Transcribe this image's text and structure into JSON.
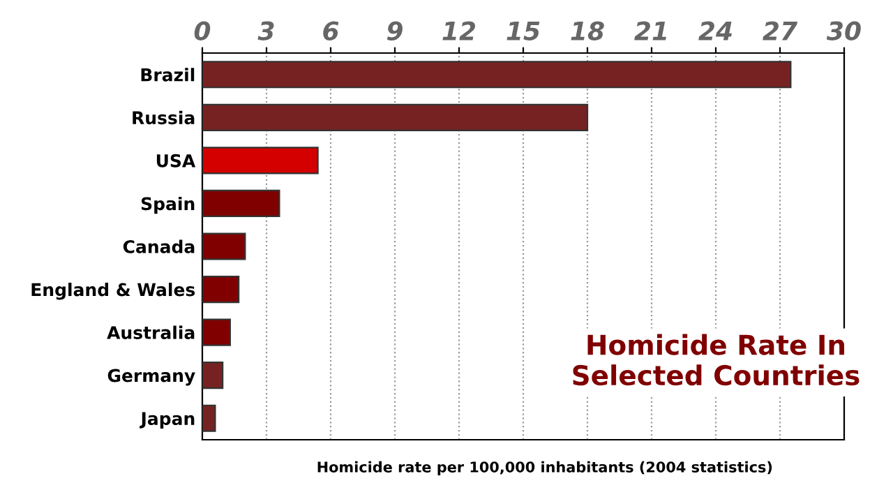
{
  "chart_data": {
    "type": "bar",
    "orientation": "horizontal",
    "title": "Homicide Rate In Selected Countries",
    "xlabel": "Homicide rate per 100,000 inhabitants (2004 statistics)",
    "categories": [
      "Brazil",
      "Russia",
      "USA",
      "Spain",
      "Canada",
      "England & Wales",
      "Australia",
      "Germany",
      "Japan"
    ],
    "values": [
      27.5,
      18,
      5.4,
      3.6,
      2.0,
      1.7,
      1.3,
      0.95,
      0.6
    ],
    "colors": [
      "#772222",
      "#772222",
      "#d40000",
      "#800000",
      "#800000",
      "#800000",
      "#800000",
      "#772222",
      "#772222"
    ],
    "xlim": [
      0,
      30
    ],
    "xticks": [
      0,
      3,
      6,
      9,
      12,
      15,
      18,
      21,
      24,
      27,
      30
    ],
    "grid": "x"
  }
}
